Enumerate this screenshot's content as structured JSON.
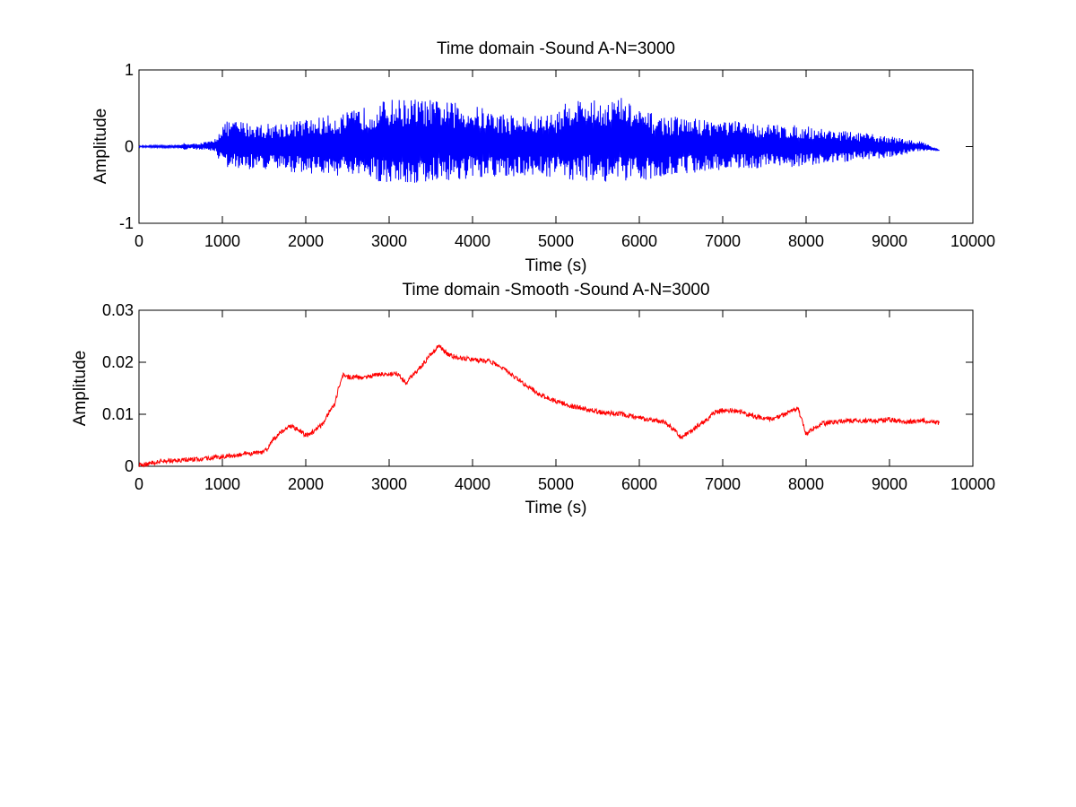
{
  "chart_data": [
    {
      "type": "line",
      "title": "Time domain -Sound A-N=3000",
      "xlabel": "Time (s)",
      "ylabel": "Amplitude",
      "xlim": [
        0,
        10000
      ],
      "ylim": [
        -1,
        1
      ],
      "xticks": [
        "0",
        "1000",
        "2000",
        "3000",
        "4000",
        "5000",
        "6000",
        "7000",
        "8000",
        "9000",
        "10000"
      ],
      "yticks": [
        "-1",
        "0",
        "1"
      ],
      "grid": false,
      "line_color": "#0000ff",
      "series": [
        {
          "x": [
            0,
            500,
            550,
            600,
            900,
            1000,
            1100,
            1500,
            2000,
            2500,
            2800,
            3000,
            3300,
            3600,
            4000,
            4300,
            4700,
            5000,
            5200,
            5500,
            5800,
            6000,
            6300,
            6600,
            7000,
            7500,
            8000,
            8500,
            9000,
            9200,
            9300,
            9400,
            9600
          ],
          "envelope_upper": [
            0.01,
            0.02,
            0.06,
            0.03,
            0.08,
            0.3,
            0.35,
            0.3,
            0.36,
            0.45,
            0.55,
            0.62,
            0.63,
            0.6,
            0.55,
            0.45,
            0.4,
            0.45,
            0.65,
            0.6,
            0.65,
            0.48,
            0.4,
            0.38,
            0.35,
            0.3,
            0.27,
            0.2,
            0.14,
            0.1,
            0.07,
            0.07,
            -0.05
          ],
          "envelope_lower": [
            -0.01,
            -0.02,
            -0.06,
            -0.03,
            -0.06,
            -0.25,
            -0.3,
            -0.3,
            -0.35,
            -0.4,
            -0.45,
            -0.48,
            -0.5,
            -0.45,
            -0.45,
            -0.42,
            -0.38,
            -0.4,
            -0.45,
            -0.45,
            -0.5,
            -0.45,
            -0.38,
            -0.35,
            -0.3,
            -0.28,
            -0.26,
            -0.2,
            -0.14,
            -0.1,
            -0.06,
            -0.06,
            -0.05
          ]
        }
      ]
    },
    {
      "type": "line",
      "title": "Time domain -Smooth -Sound A-N=3000",
      "xlabel": "Time (s)",
      "ylabel": "Amplitude",
      "xlim": [
        0,
        10000
      ],
      "ylim": [
        0,
        0.03
      ],
      "xticks": [
        "0",
        "1000",
        "2000",
        "3000",
        "4000",
        "5000",
        "6000",
        "7000",
        "8000",
        "9000",
        "10000"
      ],
      "yticks": [
        "0",
        "0.01",
        "0.02",
        "0.03"
      ],
      "grid": false,
      "line_color": "#ff0000",
      "series": [
        {
          "x": [
            0,
            100,
            200,
            300,
            500,
            700,
            900,
            1100,
            1300,
            1400,
            1500,
            1550,
            1600,
            1700,
            1800,
            1900,
            1950,
            2000,
            2050,
            2100,
            2200,
            2300,
            2350,
            2400,
            2450,
            2500,
            2700,
            2900,
            3100,
            3200,
            3300,
            3400,
            3500,
            3600,
            3700,
            3800,
            4000,
            4200,
            4400,
            4600,
            4800,
            5000,
            5200,
            5500,
            5800,
            6100,
            6300,
            6400,
            6500,
            6600,
            6700,
            6800,
            6900,
            7000,
            7200,
            7400,
            7600,
            7800,
            7900,
            8000,
            8050,
            8200,
            8500,
            8800,
            9000,
            9200,
            9400,
            9600
          ],
          "y": [
            0.0003,
            0.0004,
            0.0008,
            0.001,
            0.0012,
            0.0014,
            0.0017,
            0.002,
            0.0024,
            0.0025,
            0.0028,
            0.0035,
            0.005,
            0.0065,
            0.0078,
            0.0072,
            0.0065,
            0.006,
            0.0062,
            0.0068,
            0.008,
            0.011,
            0.012,
            0.0155,
            0.0175,
            0.0172,
            0.017,
            0.0178,
            0.0178,
            0.016,
            0.0178,
            0.0195,
            0.0215,
            0.0232,
            0.0215,
            0.021,
            0.0205,
            0.0202,
            0.0185,
            0.016,
            0.0138,
            0.0125,
            0.0115,
            0.0105,
            0.01,
            0.009,
            0.0085,
            0.0072,
            0.0055,
            0.0065,
            0.0078,
            0.0088,
            0.0103,
            0.0108,
            0.0105,
            0.0095,
            0.009,
            0.0105,
            0.0112,
            0.0062,
            0.007,
            0.0082,
            0.0088,
            0.0087,
            0.009,
            0.0085,
            0.0088,
            0.0083
          ]
        }
      ]
    }
  ]
}
